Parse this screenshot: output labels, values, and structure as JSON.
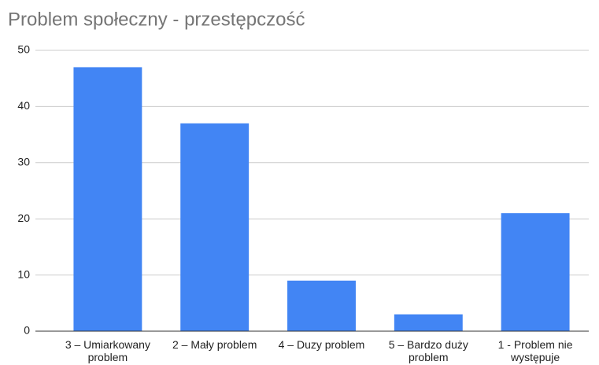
{
  "chart_data": {
    "type": "bar",
    "title": "Problem społeczny - przestępczość",
    "categories": [
      "3 – Umiarkowany problem",
      "2 – Mały problem",
      "4 – Duzy problem",
      "5 – Bardzo duży problem",
      "1 - Problem nie występuje"
    ],
    "values": [
      47,
      37,
      9,
      3,
      21
    ],
    "color": "#4285f4",
    "ylim": [
      0,
      50
    ],
    "yticks": [
      0,
      10,
      20,
      30,
      40,
      50
    ],
    "grid": true
  }
}
